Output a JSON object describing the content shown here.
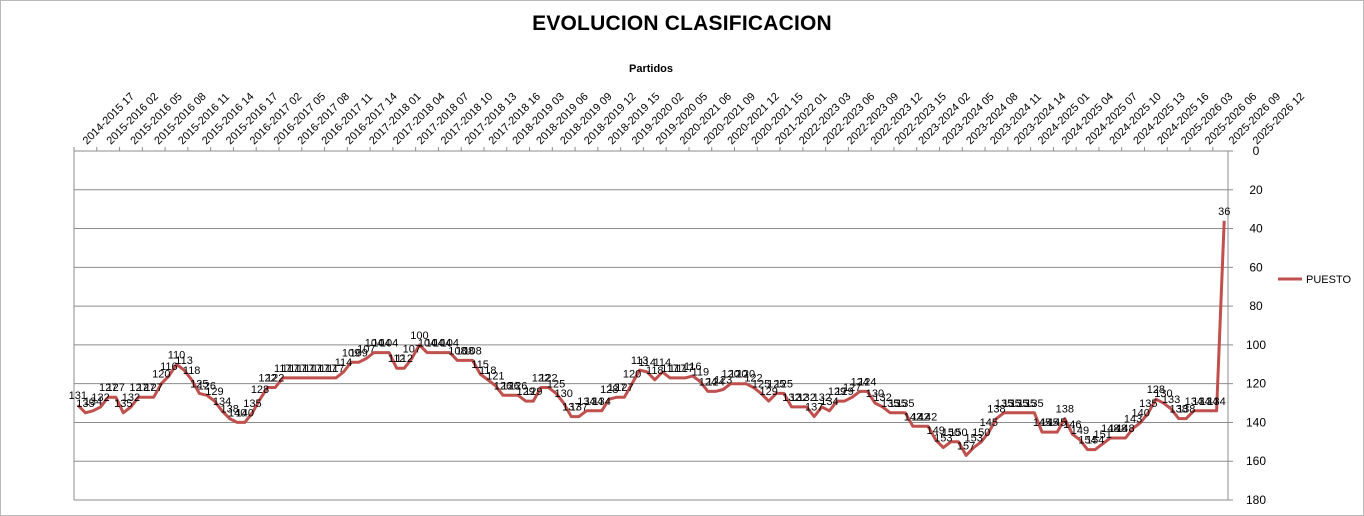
{
  "chart_data": {
    "type": "line",
    "title": "EVOLUCION CLASIFICACION",
    "xlabel": "Partidos",
    "ylabel": "",
    "y_reversed": true,
    "ylim": [
      0,
      180
    ],
    "yticks": [
      0,
      20,
      40,
      60,
      80,
      100,
      120,
      140,
      160,
      180
    ],
    "grid": "horizontal",
    "legend_position": "right",
    "x_tick_labels": [
      "2014-2015 17",
      "2015-2016 02",
      "2015-2016 05",
      "2015-2016 08",
      "2015-2016 11",
      "2015-2016 14",
      "2015-2016 17",
      "2016-2017 02",
      "2016-2017 05",
      "2016-2017 08",
      "2016-2017 11",
      "2016-2017 14",
      "2017-2018 01",
      "2017-2018 04",
      "2017-2018 07",
      "2017-2018 10",
      "2017-2018 13",
      "2017-2018 16",
      "2018-2019 03",
      "2018-2019 06",
      "2018-2019 09",
      "2018-2019 12",
      "2018-2019 15",
      "2019-2020 02",
      "2019-2020 05",
      "2020-2021 06",
      "2020-2021 09",
      "2020-2021 12",
      "2020-2021 15",
      "2021-2022 01",
      "2022-2023 03",
      "2022-2023 06",
      "2022-2023 09",
      "2022-2023 12",
      "2022-2023 15",
      "2023-2024 02",
      "2023-2024 05",
      "2023-2024 08",
      "2023-2024 11",
      "2023-2024 14",
      "2024-2025 01",
      "2024-2025 04",
      "2024-2025 07",
      "2024-2025 10",
      "2024-2025 13",
      "2024-2025 16",
      "2025-2026 03",
      "2025-2026 06",
      "2025-2026 09",
      "2025-2026 12"
    ],
    "series": [
      {
        "name": "PUESTO",
        "color": "#c0504d",
        "values": [
          131,
          135,
          134,
          132,
          127,
          127,
          135,
          132,
          127,
          127,
          127,
          120,
          116,
          110,
          113,
          118,
          125,
          126,
          129,
          134,
          138,
          140,
          140,
          135,
          128,
          122,
          122,
          117,
          117,
          117,
          117,
          117,
          117,
          117,
          117,
          114,
          109,
          109,
          107,
          104,
          104,
          104,
          112,
          112,
          107,
          100,
          104,
          104,
          104,
          104,
          108,
          108,
          108,
          115,
          118,
          121,
          126,
          126,
          126,
          129,
          129,
          122,
          122,
          125,
          130,
          137,
          137,
          134,
          134,
          134,
          128,
          127,
          127,
          120,
          113,
          114,
          118,
          114,
          117,
          117,
          117,
          116,
          119,
          124,
          124,
          123,
          120,
          120,
          120,
          122,
          125,
          129,
          125,
          125,
          132,
          132,
          132,
          137,
          132,
          134,
          129,
          129,
          127,
          124,
          124,
          130,
          132,
          135,
          135,
          135,
          142,
          142,
          142,
          149,
          153,
          150,
          150,
          157,
          153,
          150,
          145,
          138,
          135,
          135,
          135,
          135,
          135,
          145,
          145,
          145,
          138,
          146,
          149,
          154,
          154,
          151,
          148,
          148,
          148,
          143,
          140,
          135,
          128,
          130,
          133,
          138,
          138,
          134,
          134,
          134,
          134,
          36
        ]
      }
    ]
  }
}
